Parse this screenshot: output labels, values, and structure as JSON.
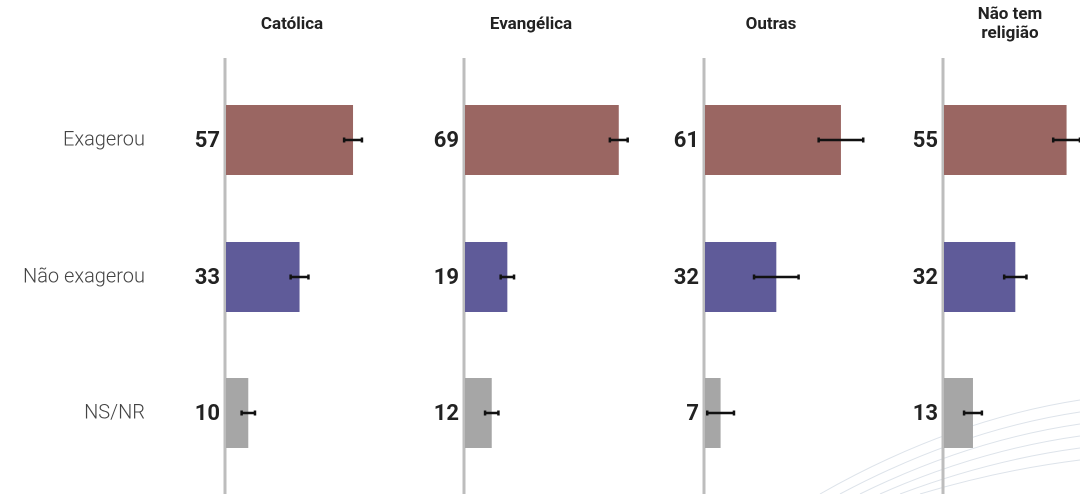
{
  "chart_data": {
    "type": "bar",
    "categories": [
      "Exagerou",
      "Não exagerou",
      "NS/NR"
    ],
    "colors": [
      "#9a6662",
      "#5f5b99",
      "#a6a6a6"
    ],
    "xlim": [
      0,
      70
    ],
    "panels": [
      {
        "title": "Católica",
        "values": [
          57,
          33,
          10
        ],
        "errors": [
          4,
          4,
          3
        ]
      },
      {
        "title": "Evangélica",
        "values": [
          69,
          19,
          12
        ],
        "errors": [
          4,
          3,
          3
        ]
      },
      {
        "title": "Outras",
        "values": [
          61,
          32,
          7
        ],
        "errors": [
          10,
          10,
          6
        ]
      },
      {
        "title": "Não tem religião",
        "values": [
          55,
          32,
          13
        ],
        "errors": [
          6,
          5,
          4
        ]
      }
    ]
  }
}
